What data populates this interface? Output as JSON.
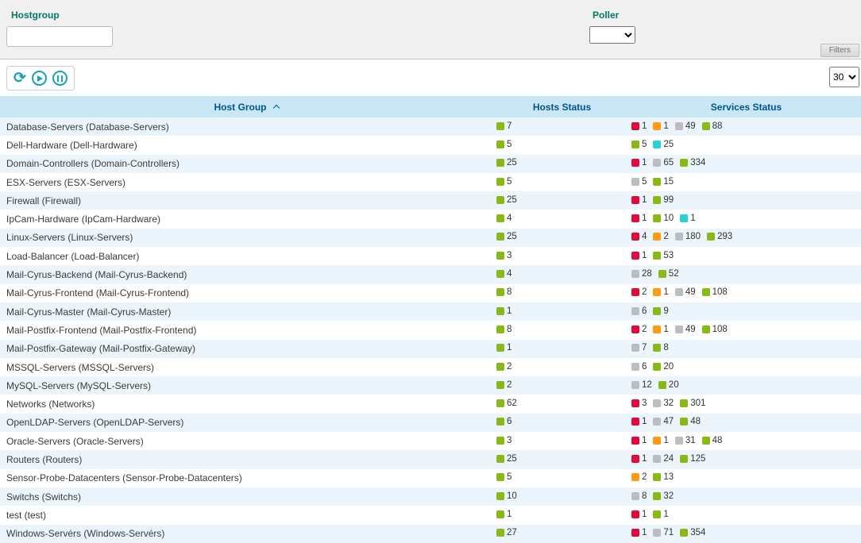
{
  "filter_bar": {
    "hostgroup_label": "Hostgroup",
    "hostgroup_value": "",
    "poller_label": "Poller",
    "poller_selected": "",
    "filters_tab_label": "Filters"
  },
  "toolbar": {
    "page_size_selected": "30"
  },
  "icons": {
    "refresh": "⟳"
  },
  "table": {
    "headers": {
      "host_group": "Host Group",
      "hosts_status": "Hosts Status",
      "services_status": "Services Status"
    },
    "sort": {
      "column": "Host Group",
      "direction": "asc"
    },
    "status_colors": {
      "ok": "#88b917",
      "critical": "#e00b3d",
      "warning": "#ff9a13",
      "unknown": "#bcbdc0",
      "pending": "#2ad1d4"
    },
    "rows": [
      {
        "name": "Database-Servers (Database-Servers)",
        "hosts": [
          [
            "ok",
            7
          ]
        ],
        "services": [
          [
            "critical",
            1
          ],
          [
            "warning",
            1
          ],
          [
            "unknown",
            49
          ],
          [
            "ok",
            88
          ]
        ]
      },
      {
        "name": "Dell-Hardware (Dell-Hardware)",
        "hosts": [
          [
            "ok",
            5
          ]
        ],
        "services": [
          [
            "ok",
            5
          ],
          [
            "pending",
            25
          ]
        ]
      },
      {
        "name": "Domain-Controllers (Domain-Controllers)",
        "hosts": [
          [
            "ok",
            25
          ]
        ],
        "services": [
          [
            "critical",
            1
          ],
          [
            "unknown",
            65
          ],
          [
            "ok",
            334
          ]
        ]
      },
      {
        "name": "ESX-Servers (ESX-Servers)",
        "hosts": [
          [
            "ok",
            5
          ]
        ],
        "services": [
          [
            "unknown",
            5
          ],
          [
            "ok",
            15
          ]
        ]
      },
      {
        "name": "Firewall (Firewall)",
        "hosts": [
          [
            "ok",
            25
          ]
        ],
        "services": [
          [
            "critical",
            1
          ],
          [
            "ok",
            99
          ]
        ]
      },
      {
        "name": "IpCam-Hardware (IpCam-Hardware)",
        "hosts": [
          [
            "ok",
            4
          ]
        ],
        "services": [
          [
            "critical",
            1
          ],
          [
            "ok",
            10
          ],
          [
            "pending",
            1
          ]
        ]
      },
      {
        "name": "Linux-Servers (Linux-Servers)",
        "hosts": [
          [
            "ok",
            25
          ]
        ],
        "services": [
          [
            "critical",
            4
          ],
          [
            "warning",
            2
          ],
          [
            "unknown",
            180
          ],
          [
            "ok",
            293
          ]
        ]
      },
      {
        "name": "Load-Balancer (Load-Balancer)",
        "hosts": [
          [
            "ok",
            3
          ]
        ],
        "services": [
          [
            "critical",
            1
          ],
          [
            "ok",
            53
          ]
        ]
      },
      {
        "name": "Mail-Cyrus-Backend (Mail-Cyrus-Backend)",
        "hosts": [
          [
            "ok",
            4
          ]
        ],
        "services": [
          [
            "unknown",
            28
          ],
          [
            "ok",
            52
          ]
        ]
      },
      {
        "name": "Mail-Cyrus-Frontend (Mail-Cyrus-Frontend)",
        "hosts": [
          [
            "ok",
            8
          ]
        ],
        "services": [
          [
            "critical",
            2
          ],
          [
            "warning",
            1
          ],
          [
            "unknown",
            49
          ],
          [
            "ok",
            108
          ]
        ]
      },
      {
        "name": "Mail-Cyrus-Master (Mail-Cyrus-Master)",
        "hosts": [
          [
            "ok",
            1
          ]
        ],
        "services": [
          [
            "unknown",
            6
          ],
          [
            "ok",
            9
          ]
        ]
      },
      {
        "name": "Mail-Postfix-Frontend (Mail-Postfix-Frontend)",
        "hosts": [
          [
            "ok",
            8
          ]
        ],
        "services": [
          [
            "critical",
            2
          ],
          [
            "warning",
            1
          ],
          [
            "unknown",
            49
          ],
          [
            "ok",
            108
          ]
        ]
      },
      {
        "name": "Mail-Postfix-Gateway (Mail-Postfix-Gateway)",
        "hosts": [
          [
            "ok",
            1
          ]
        ],
        "services": [
          [
            "unknown",
            7
          ],
          [
            "ok",
            8
          ]
        ]
      },
      {
        "name": "MSSQL-Servers (MSSQL-Servers)",
        "hosts": [
          [
            "ok",
            2
          ]
        ],
        "services": [
          [
            "unknown",
            6
          ],
          [
            "ok",
            20
          ]
        ]
      },
      {
        "name": "MySQL-Servers (MySQL-Servers)",
        "hosts": [
          [
            "ok",
            2
          ]
        ],
        "services": [
          [
            "unknown",
            12
          ],
          [
            "ok",
            20
          ]
        ]
      },
      {
        "name": "Networks (Networks)",
        "hosts": [
          [
            "ok",
            62
          ]
        ],
        "services": [
          [
            "critical",
            3
          ],
          [
            "unknown",
            32
          ],
          [
            "ok",
            301
          ]
        ]
      },
      {
        "name": "OpenLDAP-Servers (OpenLDAP-Servers)",
        "hosts": [
          [
            "ok",
            6
          ]
        ],
        "services": [
          [
            "critical",
            1
          ],
          [
            "unknown",
            47
          ],
          [
            "ok",
            48
          ]
        ]
      },
      {
        "name": "Oracle-Servers (Oracle-Servers)",
        "hosts": [
          [
            "ok",
            3
          ]
        ],
        "services": [
          [
            "critical",
            1
          ],
          [
            "warning",
            1
          ],
          [
            "unknown",
            31
          ],
          [
            "ok",
            48
          ]
        ]
      },
      {
        "name": "Routers (Routers)",
        "hosts": [
          [
            "ok",
            25
          ]
        ],
        "services": [
          [
            "critical",
            1
          ],
          [
            "unknown",
            24
          ],
          [
            "ok",
            125
          ]
        ]
      },
      {
        "name": "Sensor-Probe-Datacenters (Sensor-Probe-Datacenters)",
        "hosts": [
          [
            "ok",
            5
          ]
        ],
        "services": [
          [
            "warning",
            2
          ],
          [
            "ok",
            13
          ]
        ]
      },
      {
        "name": "Switchs (Switchs)",
        "hosts": [
          [
            "ok",
            10
          ]
        ],
        "services": [
          [
            "unknown",
            8
          ],
          [
            "ok",
            32
          ]
        ]
      },
      {
        "name": "test (test)",
        "hosts": [
          [
            "ok",
            1
          ]
        ],
        "services": [
          [
            "critical",
            1
          ],
          [
            "ok",
            1
          ]
        ]
      },
      {
        "name": "Windows-Servérs (Windows-Servérs)",
        "hosts": [
          [
            "ok",
            27
          ]
        ],
        "services": [
          [
            "critical",
            1
          ],
          [
            "unknown",
            71
          ],
          [
            "ok",
            354
          ]
        ]
      }
    ]
  }
}
